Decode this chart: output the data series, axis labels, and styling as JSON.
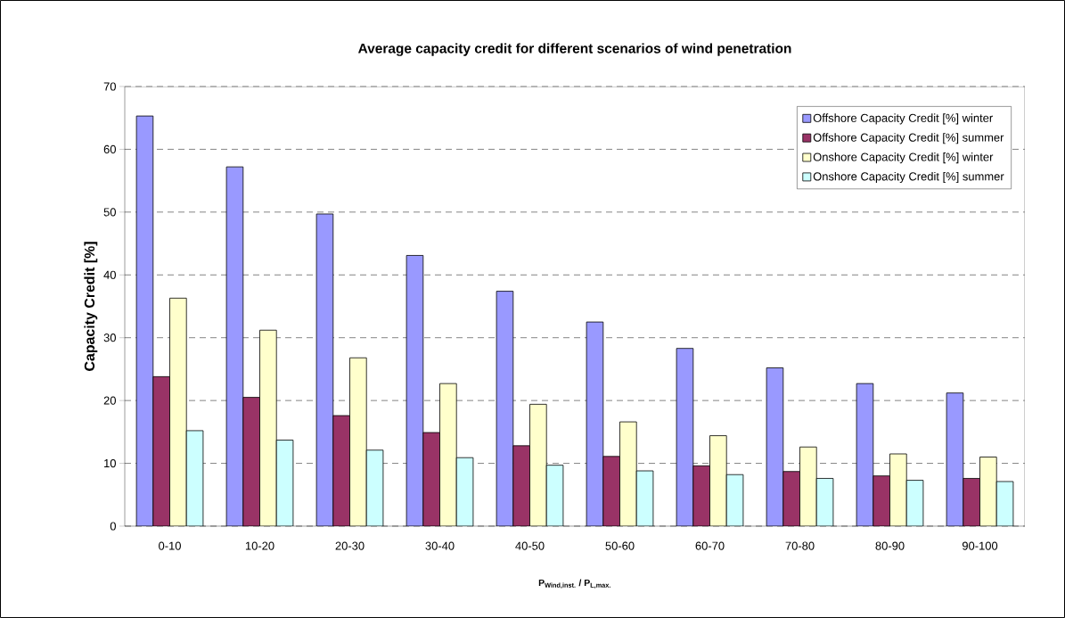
{
  "chart_data": {
    "type": "bar",
    "title": "Average capacity credit for different scenarios of wind penetration",
    "xlabel": "P$_{Wind,inst.}$ / P$_{L,max.}$",
    "ylabel": "Capacity Credit [%]",
    "categories": [
      "0-10",
      "10-20",
      "20-30",
      "30-40",
      "40-50",
      "50-60",
      "60-70",
      "70-80",
      "80-90",
      "90-100"
    ],
    "series": [
      {
        "name": "Offshore Capacity Credit [%] winter",
        "color": "#9999ff",
        "values": [
          65.3,
          57.2,
          49.7,
          43.1,
          37.4,
          32.5,
          28.3,
          25.2,
          22.7,
          21.2
        ]
      },
      {
        "name": "Offshore Capacity Credit [%] summer",
        "color": "#993366",
        "values": [
          23.8,
          20.5,
          17.6,
          14.9,
          12.8,
          11.1,
          9.6,
          8.7,
          8.0,
          7.6
        ]
      },
      {
        "name": "Onshore Capacity Credit [%] winter",
        "color": "#ffffcc",
        "values": [
          36.3,
          31.2,
          26.8,
          22.7,
          19.4,
          16.6,
          14.4,
          12.6,
          11.5,
          11.0
        ]
      },
      {
        "name": "Onshore Capacity Credit [%] summer",
        "color": "#ccffff",
        "values": [
          15.2,
          13.7,
          12.1,
          10.9,
          9.7,
          8.8,
          8.2,
          7.6,
          7.3,
          7.1
        ]
      }
    ],
    "ylim": [
      0,
      70
    ],
    "yticks": [
      0,
      10,
      20,
      30,
      40,
      50,
      60,
      70
    ],
    "grid": "y",
    "legend": "top right"
  }
}
